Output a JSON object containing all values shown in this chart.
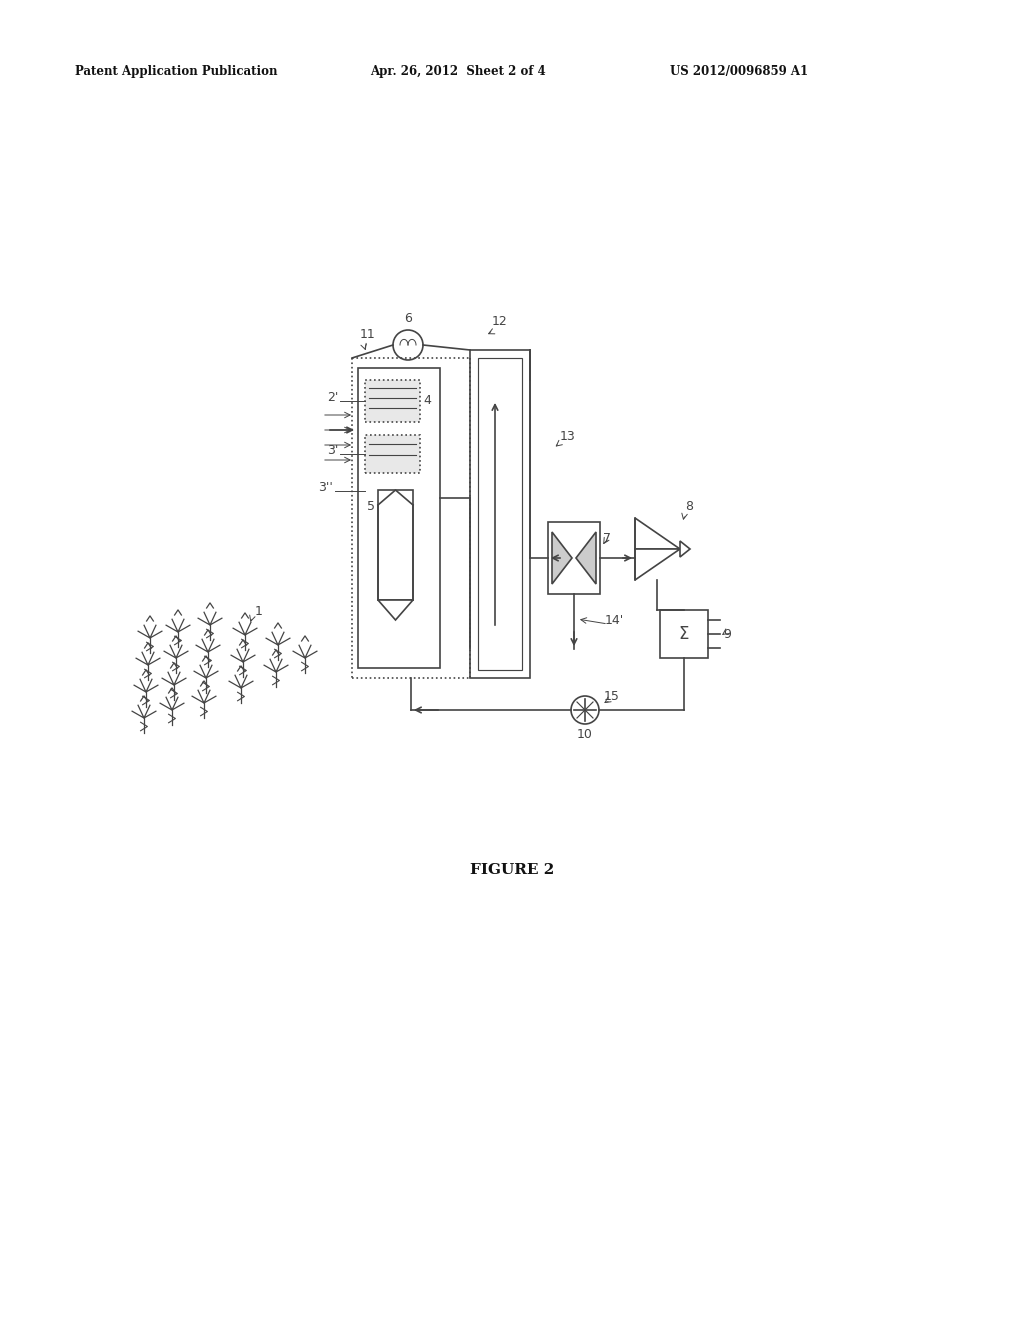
{
  "background_color": "#ffffff",
  "header_left": "Patent Application Publication",
  "header_mid": "Apr. 26, 2012  Sheet 2 of 4",
  "header_right": "US 2012/0096859 A1",
  "figure_label": "FIGURE 2",
  "line_color": "#444444",
  "lw": 1.2
}
